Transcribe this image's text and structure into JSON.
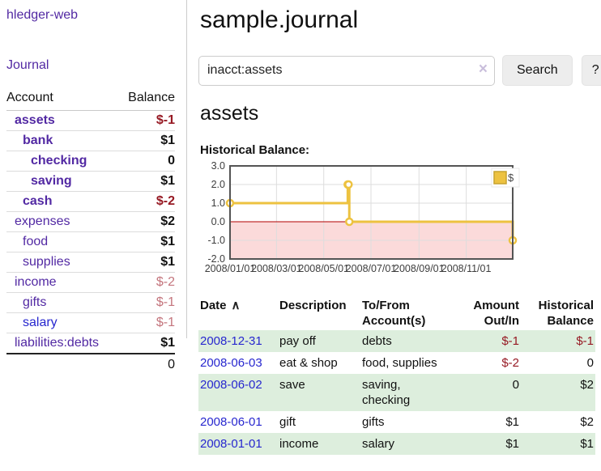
{
  "colors": {
    "link_purple": "#5229a3",
    "link_blue": "#2727cf",
    "negative_strong": "#961923",
    "negative_soft": "#c4757d",
    "row_stripe_green": "#ddeedd",
    "series_gold": "#edc240"
  },
  "icons": {
    "clear_search": "×",
    "sort_asc": "∧"
  },
  "sidebar": {
    "brand": "hledger-web",
    "journal_link": "Journal",
    "accounts_table": {
      "headers": [
        "Account",
        "Balance"
      ],
      "rows": [
        {
          "account": "assets",
          "indent": 1,
          "bold": true,
          "balance": "$-1",
          "balance_class": "neg"
        },
        {
          "account": "bank",
          "indent": 2,
          "bold": true,
          "balance": "$1",
          "balance_class": ""
        },
        {
          "account": "checking",
          "indent": 3,
          "bold": true,
          "balance": "0",
          "balance_class": ""
        },
        {
          "account": "saving",
          "indent": 3,
          "bold": true,
          "balance": "$1",
          "balance_class": ""
        },
        {
          "account": "cash",
          "indent": 2,
          "bold": true,
          "balance": "$-2",
          "balance_class": "neg"
        },
        {
          "account": "expenses",
          "indent": 1,
          "bold": false,
          "balance": "$2",
          "balance_class": ""
        },
        {
          "account": "food",
          "indent": 2,
          "bold": false,
          "balance": "$1",
          "balance_class": ""
        },
        {
          "account": "supplies",
          "indent": 2,
          "bold": false,
          "balance": "$1",
          "balance_class": ""
        },
        {
          "account": "income",
          "indent": 1,
          "bold": false,
          "balance": "$-2",
          "balance_class": "neg-soft",
          "soft": true
        },
        {
          "account": "gifts",
          "indent": 2,
          "bold": false,
          "balance": "$-1",
          "balance_class": "neg-soft",
          "soft": true
        },
        {
          "account": "salary",
          "indent": 2,
          "bold": false,
          "balance": "$-1",
          "balance_class": "neg-soft",
          "soft": true,
          "blue": true
        },
        {
          "account": "liabilities:debts",
          "indent": 1,
          "bold": false,
          "balance": "$1",
          "balance_class": ""
        }
      ],
      "total": "0"
    }
  },
  "header": {
    "title": "sample.journal",
    "search": {
      "value": "inacct:assets",
      "button_label": "Search",
      "help_label": "?"
    }
  },
  "main": {
    "account_heading": "assets",
    "chart_heading": "Historical Balance:"
  },
  "chart_data": {
    "type": "line",
    "step": true,
    "title": "Historical Balance:",
    "series": [
      {
        "name": "$",
        "color": "#edc240",
        "points": [
          [
            "2008-01-01",
            1
          ],
          [
            "2008-06-01",
            2
          ],
          [
            "2008-06-02",
            2
          ],
          [
            "2008-06-03",
            0
          ],
          [
            "2008-12-31",
            -1
          ]
        ]
      }
    ],
    "xlim": [
      "2008-01-01",
      "2008-12-31"
    ],
    "ylim": [
      -2,
      3
    ],
    "x_ticks": [
      {
        "date": "2008-01-01",
        "label": "2008/01/01"
      },
      {
        "date": "2008-03-01",
        "label": "2008/03/01"
      },
      {
        "date": "2008-05-01",
        "label": "2008/05/01"
      },
      {
        "date": "2008-07-01",
        "label": "2008/07/01"
      },
      {
        "date": "2008-09-01",
        "label": "2008/09/01"
      },
      {
        "date": "2008-11-01",
        "label": "2008/11/01"
      }
    ],
    "y_ticks": [
      "3.0",
      "2.0",
      "1.0",
      "0.0",
      "-1.0",
      "-2.0"
    ],
    "legend": {
      "label": "$",
      "position": "top-right"
    },
    "grid": true,
    "colors": {
      "negative_region": "#fbdada",
      "zero_line": "#b30000",
      "grid": "#dddddd",
      "border": "#545454"
    }
  },
  "register": {
    "columns": [
      {
        "label": "Date",
        "align": "left",
        "sorted": "asc"
      },
      {
        "label": "Description",
        "align": "left"
      },
      {
        "label": "To/From Account(s)",
        "align": "left"
      },
      {
        "label": "Amount Out/In",
        "align": "right"
      },
      {
        "label": "Historical Balance",
        "align": "right"
      }
    ],
    "rows": [
      {
        "date": "2008-12-31",
        "description": "pay off",
        "accounts": [
          "debts"
        ],
        "amount": "$-1",
        "amount_class": "neg",
        "balance": "$-1",
        "balance_class": "neg"
      },
      {
        "date": "2008-06-03",
        "description": "eat & shop",
        "accounts": [
          "food, supplies"
        ],
        "amount": "$-2",
        "amount_class": "neg",
        "balance": "0",
        "balance_class": ""
      },
      {
        "date": "2008-06-02",
        "description": "save",
        "accounts": [
          "saving,",
          "checking"
        ],
        "amount": "0",
        "amount_class": "",
        "balance": "$2",
        "balance_class": ""
      },
      {
        "date": "2008-06-01",
        "description": "gift",
        "accounts": [
          "gifts"
        ],
        "amount": "$1",
        "amount_class": "",
        "balance": "$2",
        "balance_class": ""
      },
      {
        "date": "2008-01-01",
        "description": "income",
        "accounts": [
          "salary"
        ],
        "amount": "$1",
        "amount_class": "",
        "balance": "$1",
        "balance_class": ""
      }
    ]
  }
}
